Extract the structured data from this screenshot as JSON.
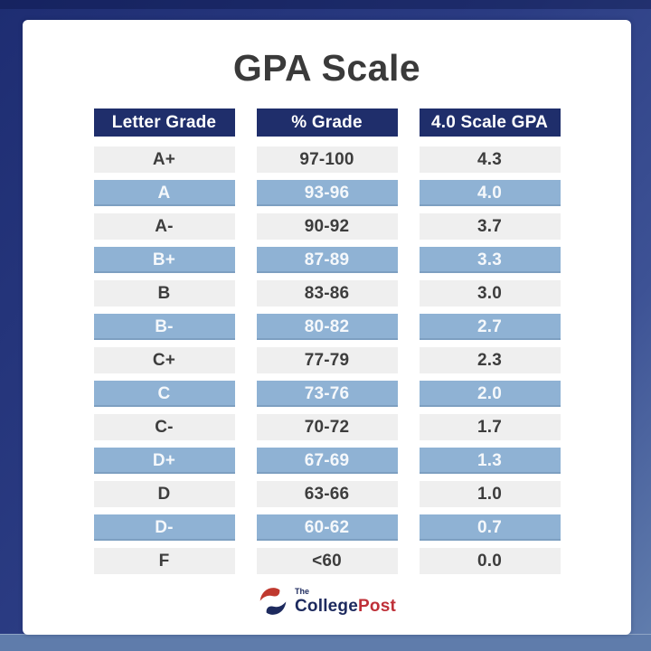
{
  "title": "GPA Scale",
  "table": {
    "headers": [
      "Letter Grade",
      "% Grade",
      "4.0 Scale GPA"
    ],
    "rows": [
      {
        "letter": "A+",
        "percent": "97-100",
        "gpa": "4.3",
        "highlight": false
      },
      {
        "letter": "A",
        "percent": "93-96",
        "gpa": "4.0",
        "highlight": true
      },
      {
        "letter": "A-",
        "percent": "90-92",
        "gpa": "3.7",
        "highlight": false
      },
      {
        "letter": "B+",
        "percent": "87-89",
        "gpa": "3.3",
        "highlight": true
      },
      {
        "letter": "B",
        "percent": "83-86",
        "gpa": "3.0",
        "highlight": false
      },
      {
        "letter": "B-",
        "percent": "80-82",
        "gpa": "2.7",
        "highlight": true
      },
      {
        "letter": "C+",
        "percent": "77-79",
        "gpa": "2.3",
        "highlight": false
      },
      {
        "letter": "C",
        "percent": "73-76",
        "gpa": "2.0",
        "highlight": true
      },
      {
        "letter": "C-",
        "percent": "70-72",
        "gpa": "1.7",
        "highlight": false
      },
      {
        "letter": "D+",
        "percent": "67-69",
        "gpa": "1.3",
        "highlight": true
      },
      {
        "letter": "D",
        "percent": "63-66",
        "gpa": "1.0",
        "highlight": false
      },
      {
        "letter": "D-",
        "percent": "60-62",
        "gpa": "0.7",
        "highlight": true
      },
      {
        "letter": "F",
        "percent": "<60",
        "gpa": "0.0",
        "highlight": false
      }
    ]
  },
  "footer": {
    "brand_the": "The",
    "brand_college": "College",
    "brand_post": "Post"
  },
  "colors": {
    "frame_navy": "#2b3c83",
    "frame_navy_dark": "#1e2d72",
    "frame_steel": "#627fae",
    "bottom_strip": "#5f7cab",
    "header_navy": "#1f2e6b",
    "row_blue": "#8fb2d4",
    "row_gray": "#efefef",
    "title_text": "#3a3a3a",
    "logo_navy": "#1d2a5e",
    "logo_red": "#bf3038"
  },
  "chart_data": {
    "type": "table",
    "title": "GPA Scale",
    "columns": [
      "Letter Grade",
      "% Grade",
      "4.0 Scale GPA"
    ],
    "rows": [
      [
        "A+",
        "97-100",
        "4.3"
      ],
      [
        "A",
        "93-96",
        "4.0"
      ],
      [
        "A-",
        "90-92",
        "3.7"
      ],
      [
        "B+",
        "87-89",
        "3.3"
      ],
      [
        "B",
        "83-86",
        "3.0"
      ],
      [
        "B-",
        "80-82",
        "2.7"
      ],
      [
        "C+",
        "77-79",
        "2.3"
      ],
      [
        "C",
        "73-76",
        "2.0"
      ],
      [
        "C-",
        "70-72",
        "1.7"
      ],
      [
        "D+",
        "67-69",
        "1.3"
      ],
      [
        "D",
        "63-66",
        "1.0"
      ],
      [
        "D-",
        "60-62",
        "0.7"
      ],
      [
        "F",
        "<60",
        "0.0"
      ]
    ],
    "layout_hints": {
      "highlighted_rows_blue": [
        "A",
        "B+",
        "B-",
        "C",
        "D+",
        "D-"
      ],
      "header_style": "dark-navy with white text",
      "body_style": "alternating light-gray and steel-blue bands"
    }
  }
}
